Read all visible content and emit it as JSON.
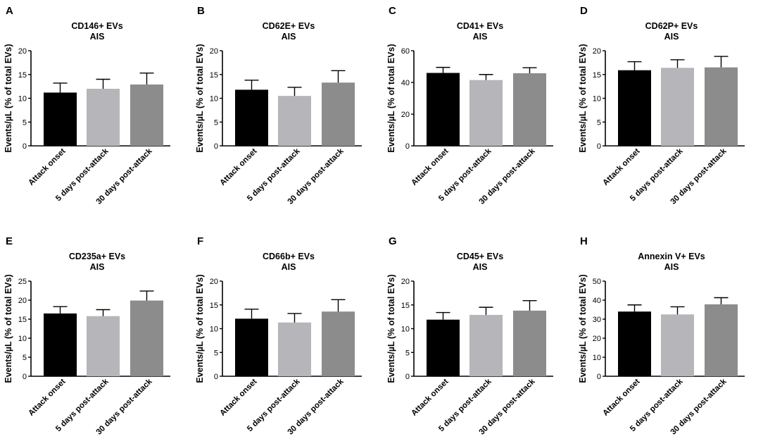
{
  "figure": {
    "background": "#ffffff"
  },
  "style": {
    "bar_colors": [
      "#000000",
      "#b5b5ba",
      "#8c8c8c"
    ],
    "axis_color": "#000000"
  },
  "chart_data": [
    {
      "panel": "A",
      "type": "bar",
      "title": "CD146+ EVs",
      "subtitle": "AIS",
      "ylabel": "Events/µL (% of total EVs)",
      "xlabel": "",
      "categories": [
        "Attack onset",
        "5 days post-attack",
        "30 days post-attack"
      ],
      "values": [
        11.2,
        12.0,
        12.9
      ],
      "errors": [
        2.0,
        2.0,
        2.4
      ],
      "ylim": [
        0,
        20
      ],
      "yticks": [
        0,
        5,
        10,
        15,
        20
      ]
    },
    {
      "panel": "B",
      "type": "bar",
      "title": "CD62E+ EVs",
      "subtitle": "AIS",
      "ylabel": "Events/µL (% of total EVs)",
      "xlabel": "",
      "categories": [
        "Attack onset",
        "5 days post-attack",
        "30 days post-attack"
      ],
      "values": [
        11.8,
        10.5,
        13.3
      ],
      "errors": [
        2.0,
        1.8,
        2.5
      ],
      "ylim": [
        0,
        20
      ],
      "yticks": [
        0,
        5,
        10,
        15,
        20
      ]
    },
    {
      "panel": "C",
      "type": "bar",
      "title": "CD41+ EVs",
      "subtitle": "AIS",
      "ylabel": "Events/µL (% of total EVs)",
      "xlabel": "",
      "categories": [
        "Attack onset",
        "5 days post-attack",
        "30 days post-attack"
      ],
      "values": [
        46,
        41.5,
        45.8
      ],
      "errors": [
        3.5,
        3.5,
        3.5
      ],
      "ylim": [
        0,
        60
      ],
      "yticks": [
        0,
        20,
        40,
        60
      ]
    },
    {
      "panel": "D",
      "type": "bar",
      "title": "CD62P+ EVs",
      "subtitle": "AIS",
      "ylabel": "Events/µL (% of total EVs)",
      "xlabel": "",
      "categories": [
        "Attack onset",
        "5 days post-attack",
        "30 days post-attack"
      ],
      "values": [
        15.9,
        16.4,
        16.5
      ],
      "errors": [
        1.8,
        1.7,
        2.3
      ],
      "ylim": [
        0,
        20
      ],
      "yticks": [
        0,
        5,
        10,
        15,
        20
      ]
    },
    {
      "panel": "E",
      "type": "bar",
      "title": "CD235a+ EVs",
      "subtitle": "AIS",
      "ylabel": "Events/µL (% of total EVs)",
      "xlabel": "",
      "categories": [
        "Attack onset",
        "5 days post-attack",
        "30 days post-attack"
      ],
      "values": [
        16.5,
        15.8,
        19.9
      ],
      "errors": [
        1.8,
        1.7,
        2.5
      ],
      "ylim": [
        0,
        25
      ],
      "yticks": [
        0,
        5,
        10,
        15,
        20,
        25
      ]
    },
    {
      "panel": "F",
      "type": "bar",
      "title": "CD66b+ EVs",
      "subtitle": "AIS",
      "ylabel": "Events/µL (% of total EVs)",
      "xlabel": "",
      "categories": [
        "Attack onset",
        "5 days post-attack",
        "30 days post-attack"
      ],
      "values": [
        12.1,
        11.3,
        13.6
      ],
      "errors": [
        2.0,
        1.9,
        2.5
      ],
      "ylim": [
        0,
        20
      ],
      "yticks": [
        0,
        5,
        10,
        15,
        20
      ]
    },
    {
      "panel": "G",
      "type": "bar",
      "title": "CD45+ EVs",
      "subtitle": "AIS",
      "ylabel": "Events/µL (% of total EVs)",
      "xlabel": "",
      "categories": [
        "Attack onset",
        "5 days post-attack",
        "30 days post-attack"
      ],
      "values": [
        11.9,
        12.9,
        13.8
      ],
      "errors": [
        1.5,
        1.6,
        2.1
      ],
      "ylim": [
        0,
        20
      ],
      "yticks": [
        0,
        5,
        10,
        15,
        20
      ]
    },
    {
      "panel": "H",
      "type": "bar",
      "title": "Annexin V+ EVs",
      "subtitle": "AIS",
      "ylabel": "Events/µL (% of total EVs)",
      "xlabel": "",
      "categories": [
        "Attack onset",
        "5 days post-attack",
        "30 days post-attack"
      ],
      "values": [
        34,
        32.5,
        37.8
      ],
      "errors": [
        3.5,
        4.0,
        3.5
      ],
      "ylim": [
        0,
        50
      ],
      "yticks": [
        0,
        10,
        20,
        30,
        40,
        50
      ]
    }
  ]
}
